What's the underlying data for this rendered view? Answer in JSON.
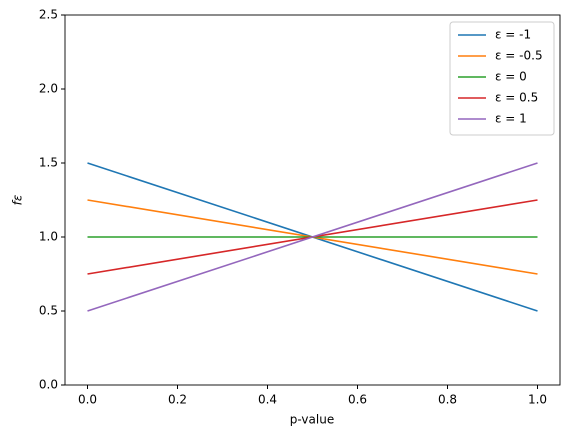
{
  "chart_data": {
    "type": "line",
    "xlabel": "p-value",
    "ylabel": "fε",
    "x": [
      0,
      1
    ],
    "series": [
      {
        "name": "ε = -1",
        "color": "#1f77b4",
        "values": [
          1.5,
          0.5
        ]
      },
      {
        "name": "ε = -0.5",
        "color": "#ff7f0e",
        "values": [
          1.25,
          0.75
        ]
      },
      {
        "name": "ε = 0",
        "color": "#2ca02c",
        "values": [
          1,
          1
        ]
      },
      {
        "name": "ε = 0.5",
        "color": "#d62728",
        "values": [
          0.75,
          1.25
        ]
      },
      {
        "name": "ε = 1",
        "color": "#9467bd",
        "values": [
          0.5,
          1.5
        ]
      }
    ],
    "xlim": [
      -0.05,
      1.05
    ],
    "xticks": [
      {
        "value": 0,
        "label": "0.0"
      },
      0.2,
      0.4,
      0.6,
      0.8,
      {
        "value": 1,
        "label": "1.0"
      }
    ],
    "ylim": [
      0,
      2.5
    ],
    "yticks": [
      {
        "value": 0,
        "label": "0.0"
      },
      0.5,
      {
        "value": 1,
        "label": "1.0"
      },
      1.5,
      {
        "value": 2,
        "label": "2.0"
      },
      2.5
    ],
    "legend": "upper right",
    "grid": false
  }
}
